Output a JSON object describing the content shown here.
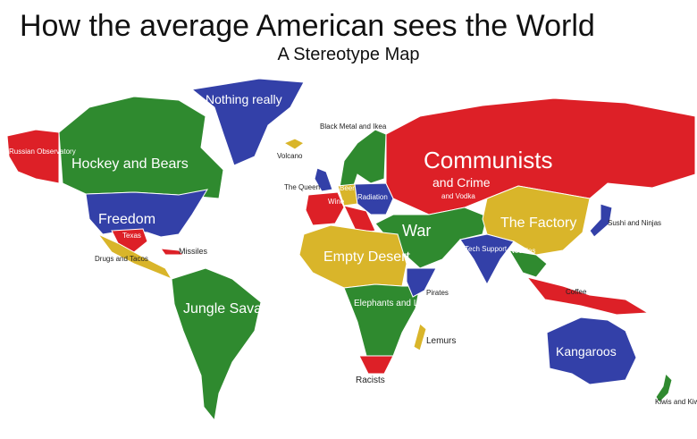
{
  "title": "How the average American sees the World",
  "subtitle": "A Stereotype Map",
  "colors": {
    "red": "#dd2027",
    "green": "#2f8a2f",
    "blue": "#3340a8",
    "yellow": "#d9b52a"
  },
  "labels": {
    "greenland": "Nothing really",
    "alaska": "Russian Observatory",
    "canada": "Hockey and Bears",
    "usa": "Freedom",
    "texas": "Texas",
    "mexico": "Drugs and Tacos",
    "cuba": "Missiles",
    "south_america": "Jungle Savages",
    "iceland": "Volcano",
    "scandinavia": "Black Metal and Ikea",
    "uk": "The Queen",
    "germany": "Beer",
    "france_italy": "Wine",
    "ukraine": "Radiation",
    "russia_main": "Communists",
    "russia_sub": "and Crime",
    "russia_small": "and Vodka",
    "middle_east": "War",
    "china": "The Factory",
    "japan": "Sushi and Ninjas",
    "india": "Tech Support",
    "se_asia": "Noodles",
    "indonesia": "Coffee",
    "north_africa": "Empty Desert",
    "central_africa": "Elephants and Lions",
    "somalia": "Pirates",
    "madagascar": "Lemurs",
    "south_africa": "Racists",
    "australia": "Kangaroos",
    "new_zealand": "Kiwis and Kiwis"
  }
}
